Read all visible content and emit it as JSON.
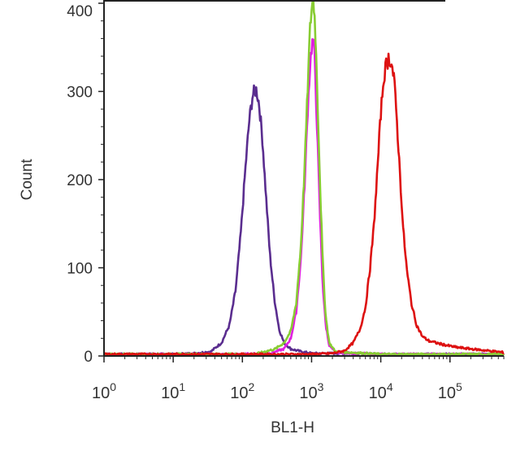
{
  "chart_data": {
    "type": "line",
    "title": "",
    "xlabel": "BL1-H",
    "ylabel": "Count",
    "x_scale": "log",
    "xlim": [
      1,
      600000
    ],
    "ylim": [
      0,
      400
    ],
    "grid": false,
    "x_ticks": [
      {
        "base": "10",
        "exp": "0",
        "value": 1
      },
      {
        "base": "10",
        "exp": "1",
        "value": 10
      },
      {
        "base": "10",
        "exp": "2",
        "value": 100
      },
      {
        "base": "10",
        "exp": "3",
        "value": 1000
      },
      {
        "base": "10",
        "exp": "4",
        "value": 10000
      },
      {
        "base": "10",
        "exp": "5",
        "value": 100000
      }
    ],
    "y_ticks": [
      {
        "label": "0",
        "value": 0
      },
      {
        "label": "100",
        "value": 100
      },
      {
        "label": "200",
        "value": 200
      },
      {
        "label": "300",
        "value": 300
      },
      {
        "label": "400",
        "value": 400
      }
    ],
    "series": [
      {
        "color": "#5a2d8f",
        "points": [
          [
            1,
            2
          ],
          [
            10,
            2
          ],
          [
            20,
            3
          ],
          [
            35,
            5
          ],
          [
            50,
            15
          ],
          [
            65,
            35
          ],
          [
            80,
            75
          ],
          [
            95,
            140
          ],
          [
            110,
            210
          ],
          [
            125,
            265
          ],
          [
            140,
            295
          ],
          [
            150,
            300
          ],
          [
            160,
            302
          ],
          [
            175,
            285
          ],
          [
            195,
            245
          ],
          [
            220,
            180
          ],
          [
            250,
            115
          ],
          [
            290,
            65
          ],
          [
            340,
            30
          ],
          [
            400,
            15
          ],
          [
            500,
            8
          ],
          [
            700,
            5
          ],
          [
            1000,
            3
          ],
          [
            3000,
            3
          ],
          [
            10000,
            2
          ],
          [
            100000,
            2
          ],
          [
            600000,
            2
          ]
        ]
      },
      {
        "color": "#e020e0",
        "points": [
          [
            1,
            2
          ],
          [
            100,
            2
          ],
          [
            250,
            3
          ],
          [
            400,
            8
          ],
          [
            500,
            20
          ],
          [
            600,
            50
          ],
          [
            700,
            110
          ],
          [
            800,
            200
          ],
          [
            880,
            280
          ],
          [
            950,
            330
          ],
          [
            1000,
            350
          ],
          [
            1060,
            360
          ],
          [
            1120,
            330
          ],
          [
            1200,
            260
          ],
          [
            1320,
            160
          ],
          [
            1450,
            80
          ],
          [
            1600,
            35
          ],
          [
            1800,
            12
          ],
          [
            2200,
            4
          ],
          [
            10000,
            2
          ],
          [
            600000,
            2
          ]
        ]
      },
      {
        "color": "#88cc33",
        "points": [
          [
            1,
            2
          ],
          [
            150,
            2
          ],
          [
            300,
            8
          ],
          [
            400,
            15
          ],
          [
            500,
            28
          ],
          [
            600,
            60
          ],
          [
            700,
            125
          ],
          [
            800,
            220
          ],
          [
            880,
            305
          ],
          [
            950,
            370
          ],
          [
            1000,
            395
          ],
          [
            1060,
            405
          ],
          [
            1120,
            380
          ],
          [
            1200,
            310
          ],
          [
            1320,
            200
          ],
          [
            1450,
            105
          ],
          [
            1600,
            45
          ],
          [
            1800,
            15
          ],
          [
            2200,
            5
          ],
          [
            10000,
            2
          ],
          [
            600000,
            2
          ]
        ]
      },
      {
        "color": "#dd1111",
        "points": [
          [
            1,
            2
          ],
          [
            1000,
            2
          ],
          [
            2000,
            3
          ],
          [
            3000,
            6
          ],
          [
            4000,
            15
          ],
          [
            5000,
            30
          ],
          [
            6000,
            55
          ],
          [
            7000,
            100
          ],
          [
            8000,
            150
          ],
          [
            9000,
            215
          ],
          [
            10000,
            275
          ],
          [
            11000,
            315
          ],
          [
            12000,
            330
          ],
          [
            13000,
            338
          ],
          [
            14000,
            335
          ],
          [
            15500,
            315
          ],
          [
            17000,
            270
          ],
          [
            19000,
            205
          ],
          [
            21000,
            145
          ],
          [
            24000,
            95
          ],
          [
            28000,
            58
          ],
          [
            33000,
            35
          ],
          [
            40000,
            22
          ],
          [
            50000,
            17
          ],
          [
            70000,
            14
          ],
          [
            90000,
            12
          ],
          [
            120000,
            10
          ],
          [
            200000,
            8
          ],
          [
            350000,
            6
          ],
          [
            600000,
            4
          ]
        ]
      }
    ]
  }
}
